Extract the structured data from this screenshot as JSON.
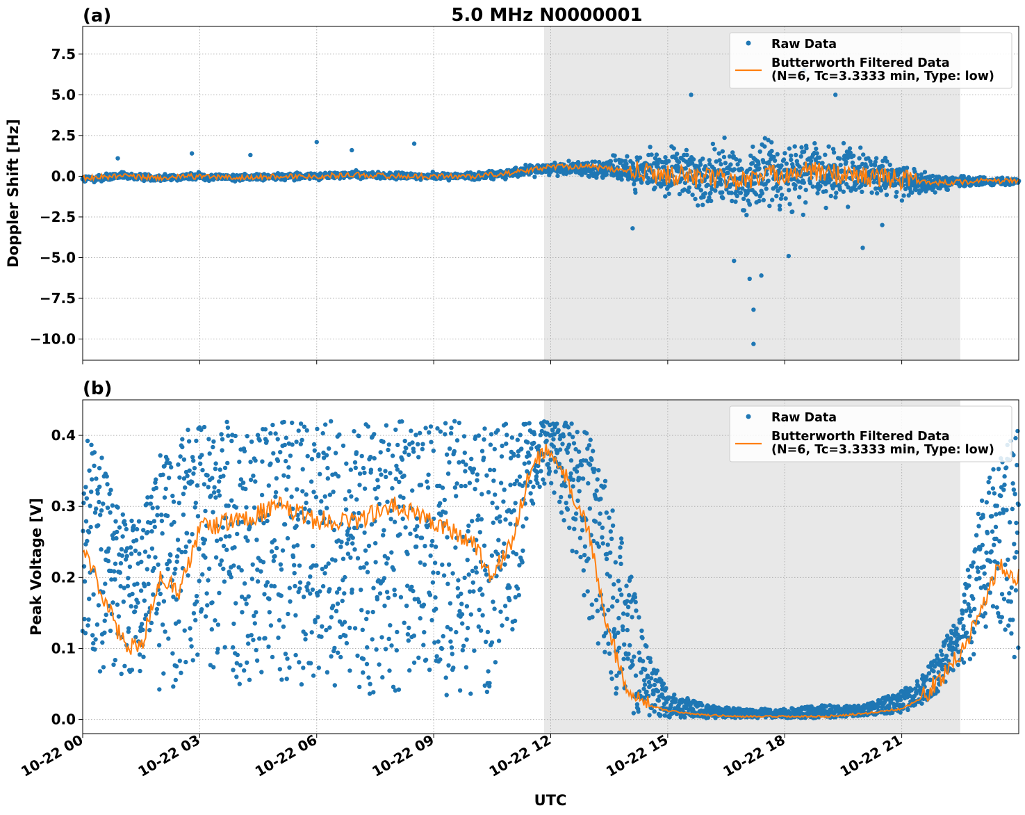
{
  "chart_data": {
    "type": "scatter",
    "suptitle": "5.0 MHz N0000001",
    "xlabel": "UTC",
    "x_tick_labels": [
      "10-22 00",
      "10-22 03",
      "10-22 06",
      "10-22 09",
      "10-22 12",
      "10-22 15",
      "10-22 18",
      "10-22 21"
    ],
    "x_tick_hours": [
      0,
      3,
      6,
      9,
      12,
      15,
      18,
      21
    ],
    "xlim_hours": [
      0,
      24
    ],
    "shaded_region_hours": [
      11.83,
      22.5
    ],
    "grid": true,
    "legend_placement": "top-right",
    "panels": [
      {
        "label": "(a)",
        "ylabel": "Doppler Shift [Hz]",
        "ylim": [
          -11.3,
          9.2
        ],
        "y_ticks": [
          7.5,
          5.0,
          2.5,
          0.0,
          -2.5,
          -5.0,
          -7.5,
          -10.0
        ],
        "y_tick_labels": [
          "7.5",
          "5.0",
          "2.5",
          "0.0",
          "−2.5",
          "−5.0",
          "−7.5",
          "−10.0"
        ],
        "series": [
          {
            "name": "Raw Data",
            "style": "dots",
            "color": "#1f77b4",
            "x_hours": [
              0,
              1,
              2,
              3,
              4,
              5,
              6,
              7,
              8,
              9,
              10,
              11,
              12,
              13,
              14,
              15,
              16,
              17,
              17.5,
              18,
              18.5,
              19,
              20,
              21,
              22,
              23,
              24
            ],
            "center": [
              -0.2,
              0.0,
              -0.1,
              0.0,
              -0.1,
              0.0,
              0.0,
              0.1,
              0.0,
              0.0,
              0.0,
              0.2,
              0.5,
              0.5,
              0.3,
              0.2,
              0.0,
              -0.2,
              0.1,
              0.2,
              0.3,
              0.2,
              0.1,
              -0.2,
              -0.4,
              -0.3,
              -0.3
            ],
            "spread": [
              0.35,
              0.35,
              0.3,
              0.3,
              0.3,
              0.3,
              0.3,
              0.3,
              0.3,
              0.3,
              0.3,
              0.4,
              0.5,
              0.7,
              1.2,
              2.2,
              2.7,
              3.0,
              3.2,
              3.0,
              2.9,
              2.6,
              2.2,
              1.4,
              0.6,
              0.35,
              0.3
            ],
            "outliers": [
              [
                0.9,
                1.1
              ],
              [
                2.8,
                1.4
              ],
              [
                4.3,
                1.3
              ],
              [
                6.0,
                2.1
              ],
              [
                6.9,
                1.6
              ],
              [
                8.5,
                2.0
              ],
              [
                14.1,
                -3.2
              ],
              [
                15.6,
                5.0
              ],
              [
                16.7,
                -5.2
              ],
              [
                17.1,
                -6.3
              ],
              [
                17.2,
                -8.2
              ],
              [
                17.2,
                -10.3
              ],
              [
                17.4,
                -6.1
              ],
              [
                18.1,
                -4.9
              ],
              [
                18.5,
                6.5
              ],
              [
                19.3,
                5.0
              ],
              [
                20.0,
                -4.4
              ],
              [
                20.5,
                -3.0
              ]
            ]
          },
          {
            "name": "Butterworth Filtered Data\n(N=6, Tc=3.3333 min, Type: low)",
            "style": "line",
            "color": "#ff7f0e",
            "x_hours": [
              0,
              1,
              2,
              3,
              4,
              5,
              6,
              7,
              8,
              9,
              10,
              11,
              12,
              13,
              14,
              15,
              16,
              17,
              17.5,
              18,
              18.5,
              19,
              20,
              21,
              22,
              23,
              24
            ],
            "y": [
              -0.1,
              0.0,
              -0.1,
              0.0,
              -0.1,
              0.0,
              0.0,
              0.1,
              0.0,
              0.0,
              0.0,
              0.2,
              0.6,
              0.6,
              0.3,
              0.1,
              -0.1,
              -0.3,
              0.0,
              0.2,
              0.3,
              0.2,
              0.0,
              -0.2,
              -0.4,
              -0.3,
              -0.3
            ]
          }
        ]
      },
      {
        "label": "(b)",
        "ylabel": "Peak Voltage [V]",
        "ylim": [
          -0.02,
          0.45
        ],
        "y_ticks": [
          0.4,
          0.3,
          0.2,
          0.1,
          0.0
        ],
        "y_tick_labels": [
          "0.4",
          "0.3",
          "0.2",
          "0.1",
          "0.0"
        ],
        "series": [
          {
            "name": "Raw Data",
            "style": "dots",
            "color": "#1f77b4",
            "x_hours": [
              0,
              0.5,
              1,
              1.5,
              2,
              2.5,
              3,
              4,
              5,
              6,
              7,
              8,
              9,
              10,
              10.5,
              11,
              11.5,
              12,
              12.5,
              13,
              13.5,
              14,
              14.5,
              15,
              16,
              17,
              18,
              19,
              20,
              21,
              21.5,
              22,
              22.5,
              23,
              23.5,
              24
            ],
            "upper": [
              0.4,
              0.38,
              0.3,
              0.28,
              0.38,
              0.4,
              0.42,
              0.42,
              0.42,
              0.42,
              0.42,
              0.42,
              0.42,
              0.42,
              0.42,
              0.42,
              0.42,
              0.42,
              0.42,
              0.41,
              0.32,
              0.22,
              0.1,
              0.04,
              0.02,
              0.015,
              0.015,
              0.02,
              0.02,
              0.04,
              0.06,
              0.1,
              0.16,
              0.3,
              0.38,
              0.41
            ],
            "lower": [
              0.1,
              0.05,
              0.04,
              0.02,
              0.04,
              0.04,
              0.06,
              0.04,
              0.04,
              0.03,
              0.03,
              0.03,
              0.03,
              0.03,
              0.03,
              0.06,
              0.3,
              0.33,
              0.25,
              0.12,
              0.05,
              0.01,
              0.005,
              0.003,
              0.002,
              0.002,
              0.002,
              0.002,
              0.005,
              0.01,
              0.02,
              0.04,
              0.06,
              0.1,
              0.12,
              0.07
            ]
          },
          {
            "name": "Butterworth Filtered Data\n(N=6, Tc=3.3333 min, Type: low)",
            "style": "line",
            "color": "#ff7f0e",
            "x_hours": [
              0,
              0.5,
              1,
              1.5,
              2,
              2.5,
              3,
              4,
              5,
              6,
              7,
              8,
              9,
              10,
              10.5,
              11,
              11.5,
              12,
              12.5,
              13,
              13.5,
              14,
              14.5,
              15,
              16,
              17,
              18,
              19,
              20,
              21,
              21.5,
              22,
              22.5,
              23,
              23.5,
              24
            ],
            "y": [
              0.24,
              0.18,
              0.11,
              0.1,
              0.2,
              0.18,
              0.27,
              0.28,
              0.3,
              0.28,
              0.28,
              0.3,
              0.28,
              0.25,
              0.2,
              0.25,
              0.36,
              0.38,
              0.33,
              0.26,
              0.12,
              0.04,
              0.02,
              0.012,
              0.006,
              0.004,
              0.004,
              0.004,
              0.008,
              0.015,
              0.03,
              0.06,
              0.09,
              0.15,
              0.22,
              0.2
            ]
          }
        ]
      }
    ]
  }
}
